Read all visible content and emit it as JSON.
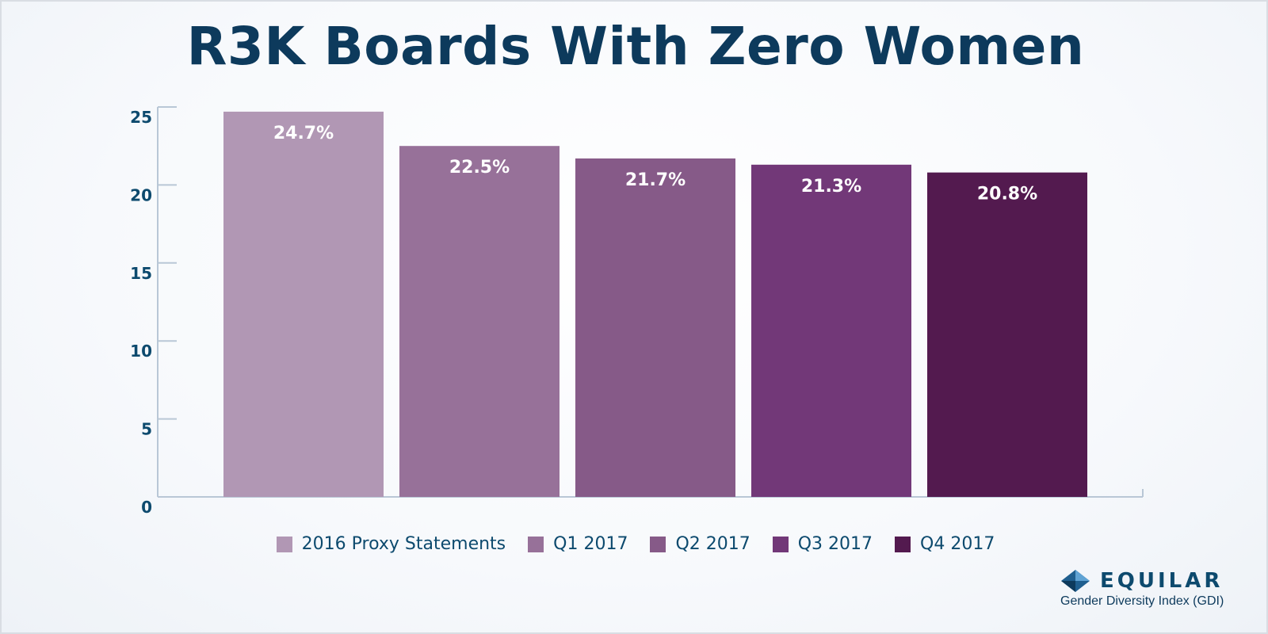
{
  "title": "R3K Boards With Zero Women",
  "chart_data": {
    "type": "bar",
    "title": "R3K Boards With Zero Women",
    "xlabel": "",
    "ylabel": "",
    "ylim": [
      0,
      25
    ],
    "yticks": [
      0,
      5,
      10,
      15,
      20,
      25
    ],
    "grid": false,
    "legend_position": "bottom",
    "categories": [
      "2016 Proxy Statements",
      "Q1 2017",
      "Q2 2017",
      "Q3 2017",
      "Q4 2017"
    ],
    "values": [
      24.7,
      22.5,
      21.7,
      21.3,
      20.8
    ],
    "data_labels": [
      "24.7%",
      "22.5%",
      "21.7%",
      "21.3%",
      "20.8%"
    ],
    "colors": [
      "#b197b4",
      "#977199",
      "#865a88",
      "#723878",
      "#531a4f"
    ]
  },
  "logo": {
    "name": "EQUILAR",
    "subtitle": "Gender Diversity Index (GDI)",
    "color": "#0d4a6e"
  }
}
